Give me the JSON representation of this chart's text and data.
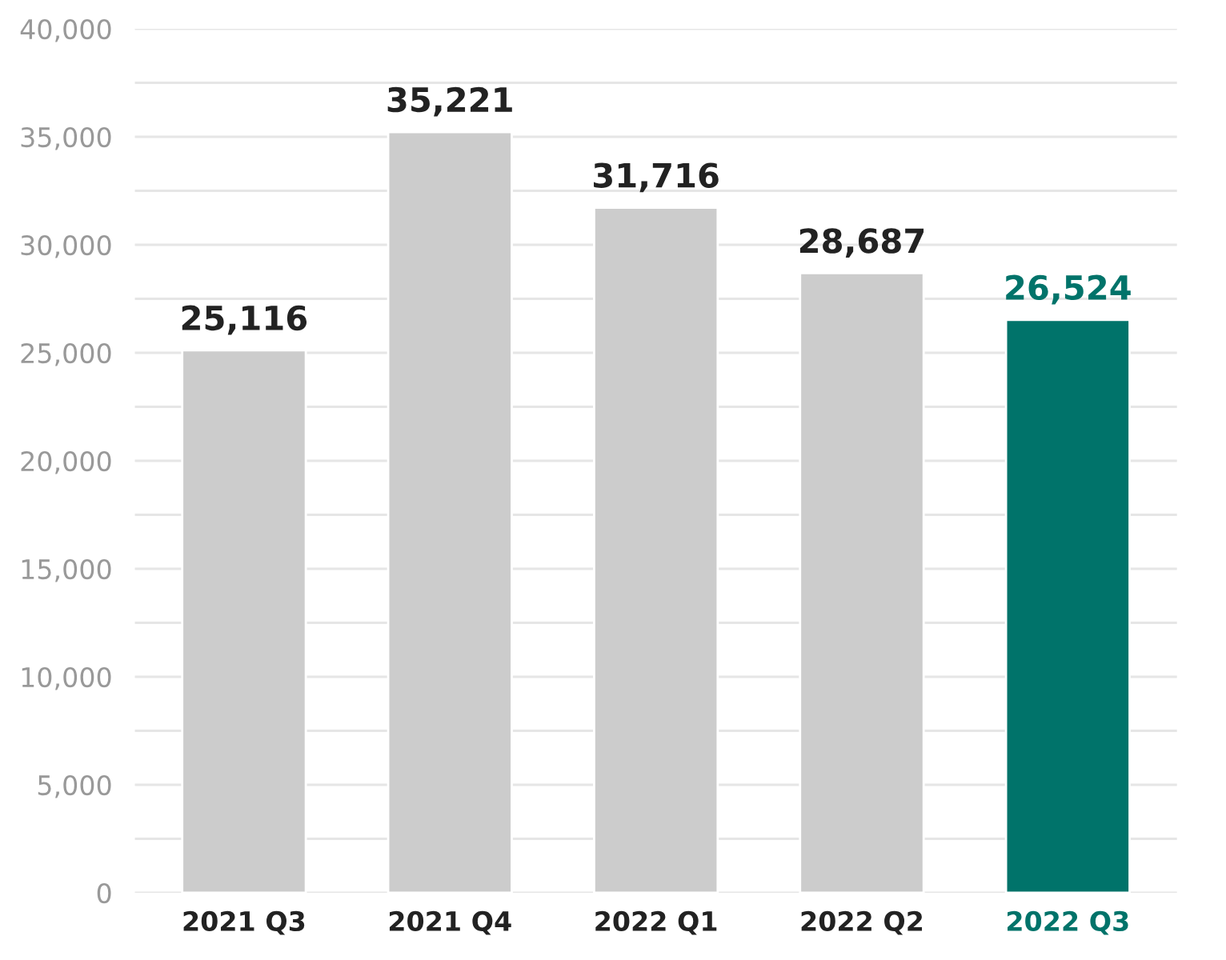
{
  "chart_data": {
    "type": "bar",
    "categories": [
      "2021 Q3",
      "2021 Q4",
      "2022 Q1",
      "2022 Q2",
      "2022 Q3"
    ],
    "values": [
      25116,
      35221,
      31716,
      28687,
      26524
    ],
    "colors": [
      "#cccccc",
      "#cccccc",
      "#cccccc",
      "#cccccc",
      "#00736a"
    ],
    "value_labels": [
      "25,116",
      "35,221",
      "31,716",
      "28,687",
      "26,524"
    ],
    "ylim": [
      0,
      40000
    ],
    "yticks": [
      {
        "value": 0,
        "label": "0"
      },
      {
        "value": 2500,
        "label": null
      },
      {
        "value": 5000,
        "label": "5,000"
      },
      {
        "value": 7500,
        "label": null
      },
      {
        "value": 10000,
        "label": "10,000"
      },
      {
        "value": 12500,
        "label": null
      },
      {
        "value": 15000,
        "label": "15,000"
      },
      {
        "value": 17500,
        "label": null
      },
      {
        "value": 20000,
        "label": "20,000"
      },
      {
        "value": 22500,
        "label": null
      },
      {
        "value": 25000,
        "label": "25,000"
      },
      {
        "value": 27500,
        "label": null
      },
      {
        "value": 30000,
        "label": "30,000"
      },
      {
        "value": 32500,
        "label": null
      },
      {
        "value": 35000,
        "label": "35,000"
      },
      {
        "value": 37500,
        "label": null
      },
      {
        "value": 40000,
        "label": "40,000"
      }
    ],
    "grid": "y"
  }
}
